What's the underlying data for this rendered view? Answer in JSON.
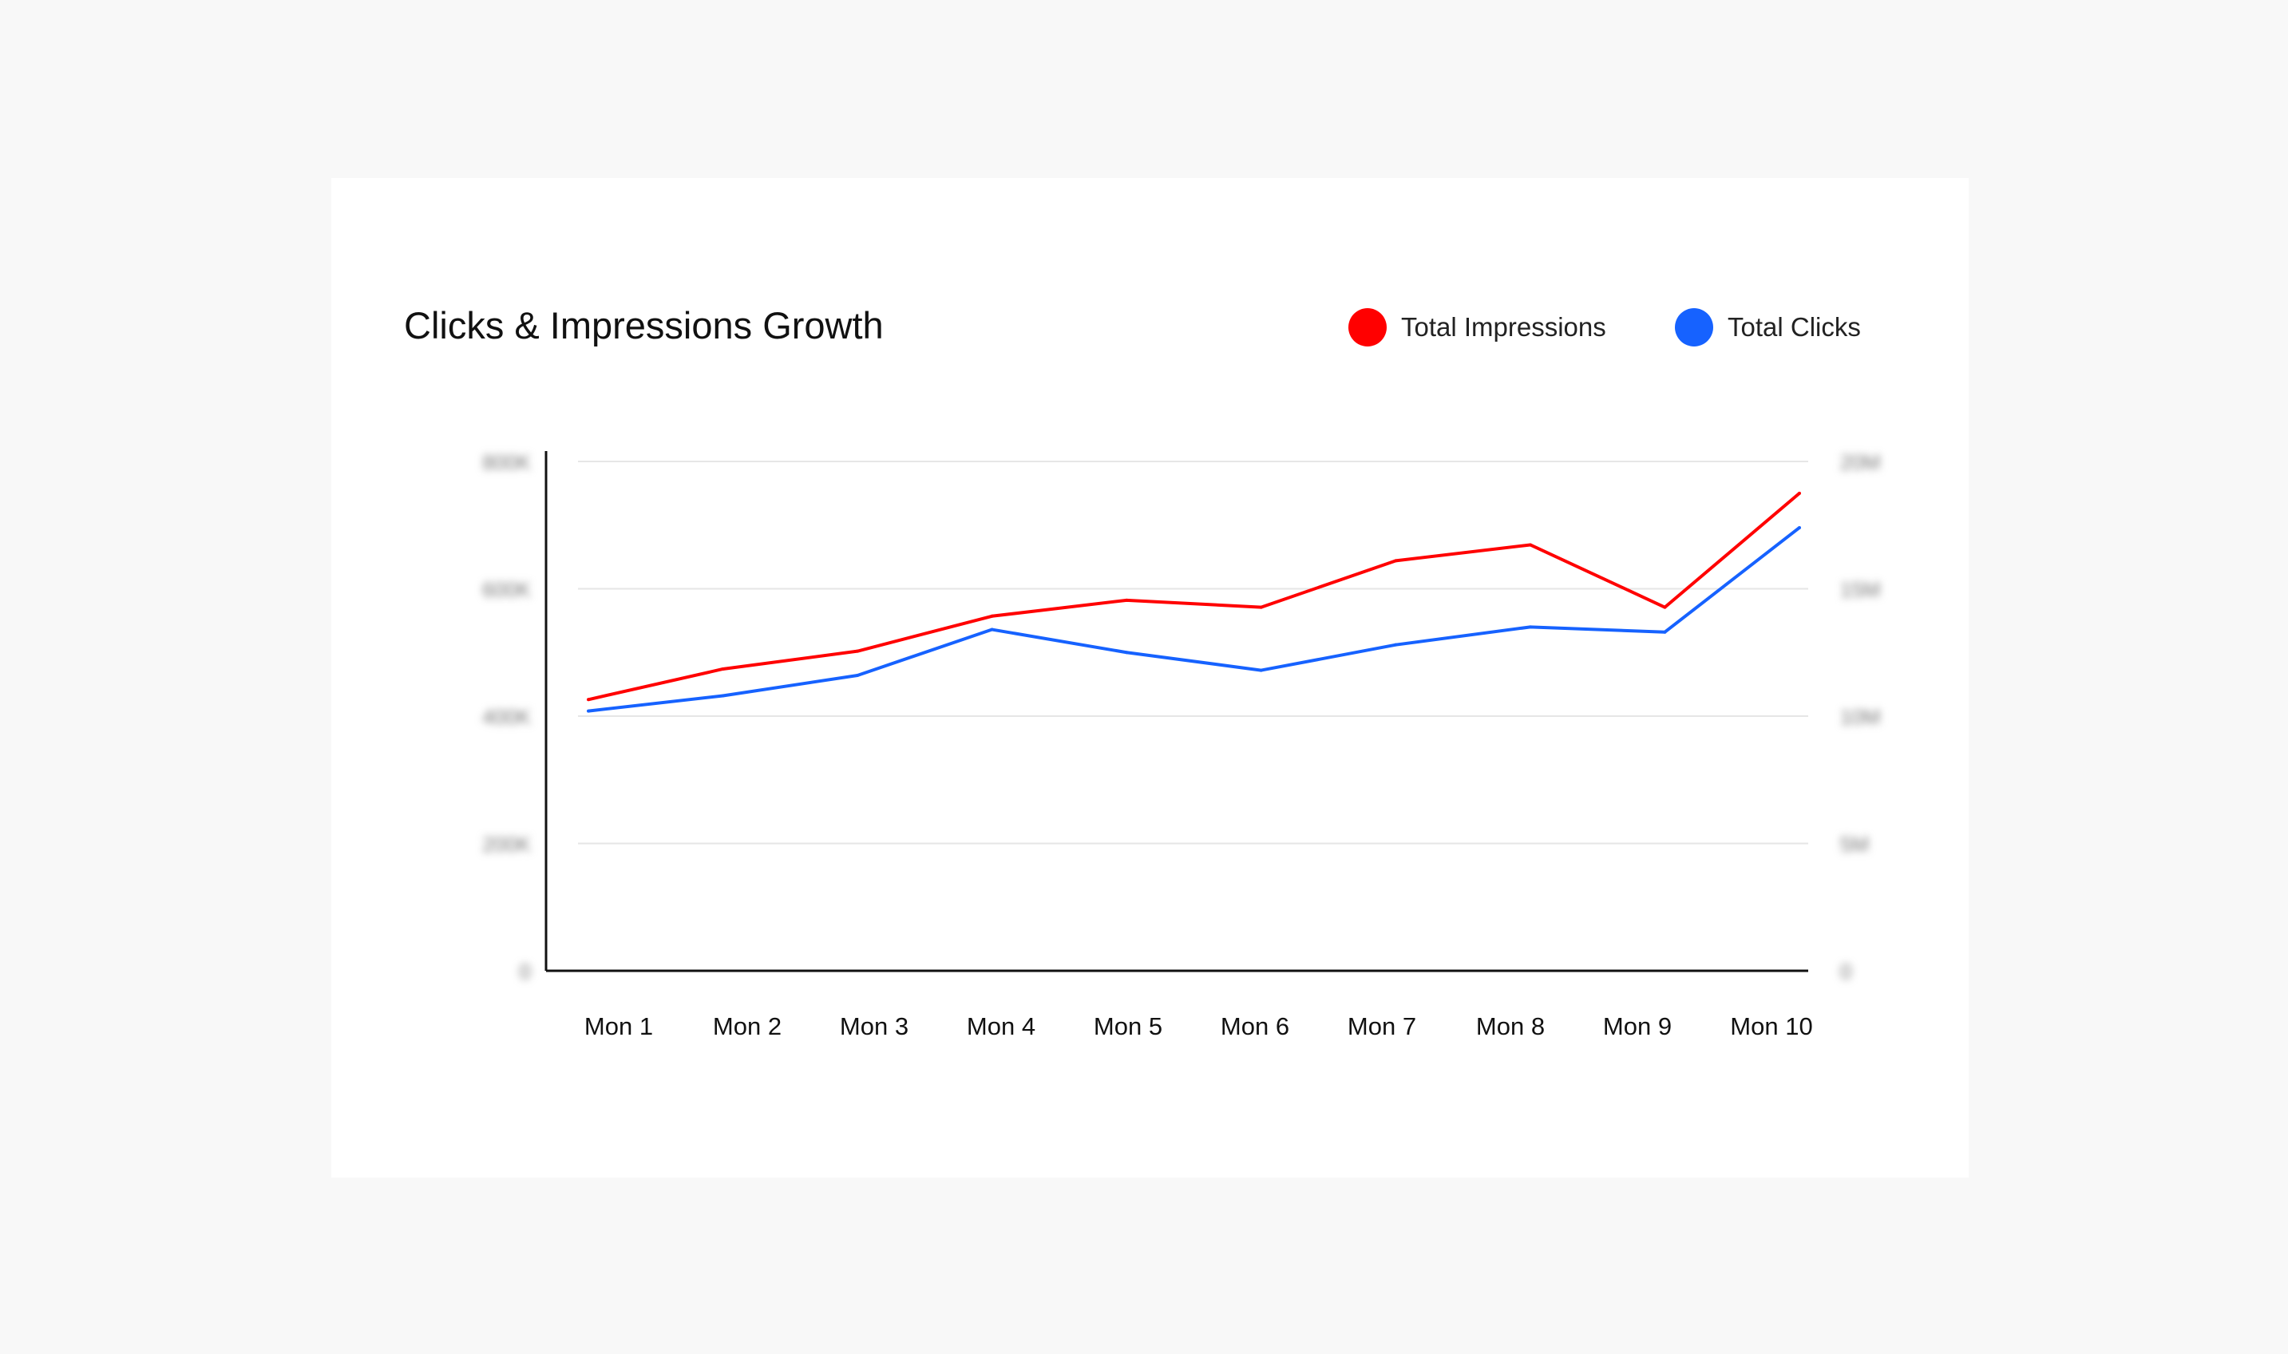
{
  "chart_data": {
    "type": "line",
    "title": "Clicks & Impressions Growth",
    "categories": [
      "Mon 1",
      "Mon 2",
      "Mon 3",
      "Mon 4",
      "Mon 5",
      "Mon 6",
      "Mon 7",
      "Mon 8",
      "Mon 9",
      "Mon 10"
    ],
    "series": [
      {
        "name": "Total Impressions",
        "color": "#ff0000",
        "axis": "left",
        "values": [
          426,
          474,
          502,
          557,
          582,
          571,
          644,
          669,
          571,
          750
        ]
      },
      {
        "name": "Total Clicks",
        "color": "#1662ff",
        "axis": "right",
        "values": [
          10.2,
          10.8,
          11.6,
          13.4,
          12.5,
          11.8,
          12.8,
          13.5,
          13.3,
          17.4
        ]
      }
    ],
    "left_axis": {
      "ylim": [
        0,
        800
      ],
      "ticks": [
        "0",
        "200K",
        "400K",
        "600K",
        "800K"
      ],
      "tick_values": [
        0,
        200,
        400,
        600,
        800
      ],
      "labels_blurred": true
    },
    "right_axis": {
      "ylim": [
        0,
        20
      ],
      "ticks": [
        "0",
        "5M",
        "10M",
        "15M",
        "20M"
      ],
      "tick_values": [
        0,
        5,
        10,
        15,
        20
      ],
      "labels_blurred": true
    },
    "grid": true,
    "legend_position": "top-right"
  }
}
